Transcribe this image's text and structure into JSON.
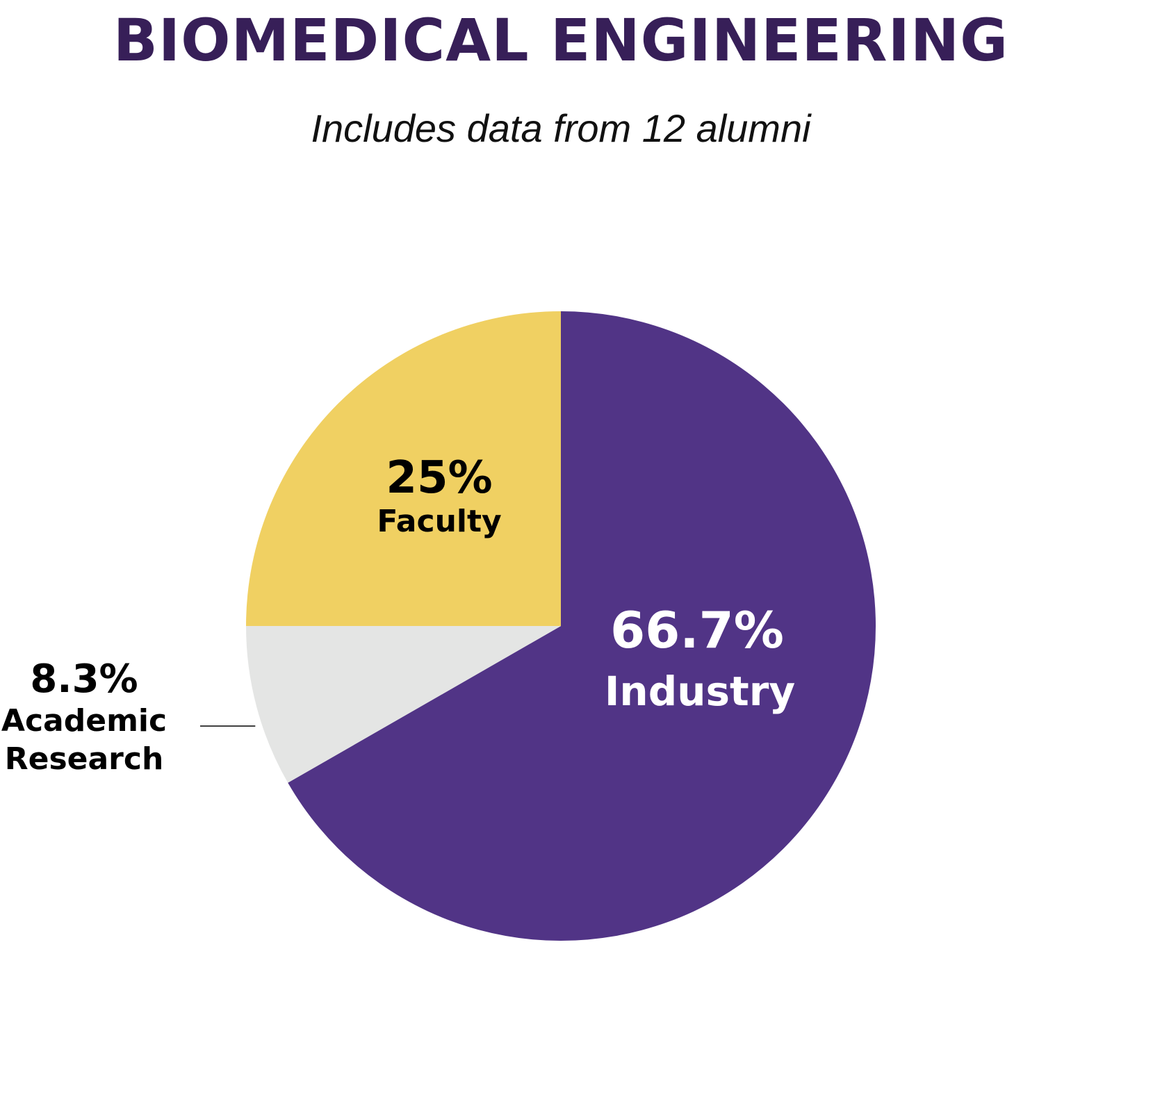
{
  "header": {
    "title": "BIOMEDICAL ENGINEERING",
    "subtitle": "Includes data from 12 alumni"
  },
  "colors": {
    "title": "#371f58",
    "industry": "#513486",
    "faculty": "#f0d062",
    "academic_research": "#e4e5e4",
    "label_dark": "#000000",
    "label_light": "#ffffff"
  },
  "chart_data": {
    "type": "pie",
    "title": "BIOMEDICAL ENGINEERING",
    "subtitle": "Includes data from 12 alumni",
    "start_angle_deg": 0,
    "direction": "clockwise",
    "slices": [
      {
        "key": "industry",
        "label": "Industry",
        "value": 66.7,
        "display": "66.7%",
        "color": "#513486",
        "label_color": "#ffffff",
        "label_lines": [
          "Industry"
        ]
      },
      {
        "key": "academic_research",
        "label": "Academic Research",
        "value": 8.3,
        "display": "8.3%",
        "color": "#e4e5e4",
        "label_color": "#000000",
        "label_lines": [
          "Academic",
          "Research"
        ],
        "external_label": true
      },
      {
        "key": "faculty",
        "label": "Faculty",
        "value": 25,
        "display": "25%",
        "color": "#f0d062",
        "label_color": "#000000",
        "label_lines": [
          "Faculty"
        ]
      }
    ]
  }
}
